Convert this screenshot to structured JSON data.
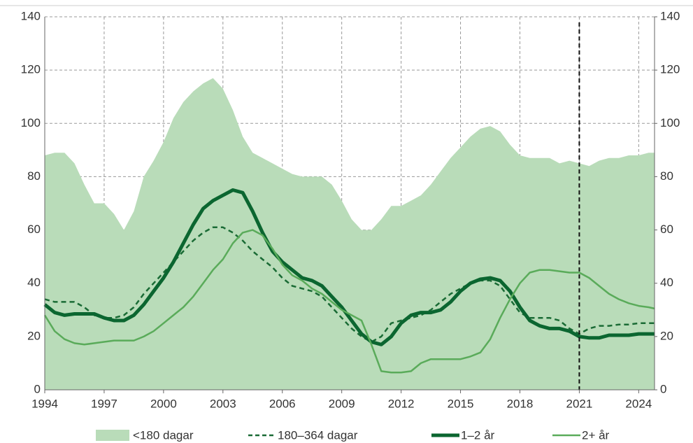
{
  "chart_data": {
    "type": "line",
    "x": [
      1994,
      1994.5,
      1995,
      1995.5,
      1996,
      1996.5,
      1997,
      1997.5,
      1998,
      1998.5,
      1999,
      1999.5,
      2000,
      2000.5,
      2001,
      2001.5,
      2002,
      2002.5,
      2003,
      2003.5,
      2004,
      2004.5,
      2005,
      2005.5,
      2006,
      2006.5,
      2007,
      2007.5,
      2008,
      2008.5,
      2009,
      2009.5,
      2010,
      2010.5,
      2011,
      2011.5,
      2012,
      2012.5,
      2013,
      2013.5,
      2014,
      2014.5,
      2015,
      2015.5,
      2016,
      2016.5,
      2017,
      2017.5,
      2018,
      2018.5,
      2019,
      2019.5,
      2020,
      2020.5,
      2021,
      2021.5,
      2022,
      2022.5,
      2023,
      2023.5,
      2024,
      2024.5,
      2024.8
    ],
    "series": [
      {
        "name": "<180 dagar",
        "kind": "area",
        "color": "#b9dcb9",
        "values": [
          88,
          89,
          89,
          85,
          77,
          70,
          70,
          66,
          60,
          67,
          80,
          86,
          93,
          102,
          108,
          112,
          115,
          117,
          113,
          105,
          95,
          89,
          87,
          85,
          83,
          81,
          80,
          80,
          80,
          77,
          71,
          64,
          60,
          60,
          64,
          69,
          69,
          71,
          73,
          77,
          82,
          87,
          91,
          95,
          98,
          99,
          97,
          92,
          88,
          87,
          87,
          87,
          85,
          86,
          85,
          84,
          86,
          87,
          87,
          88,
          88,
          89,
          89
        ]
      },
      {
        "name": "180–364 dagar",
        "kind": "dashed",
        "color": "#1a6b35",
        "values": [
          34,
          33,
          33,
          33,
          31,
          28,
          27,
          27,
          28,
          31,
          36,
          40,
          44,
          48,
          52,
          56,
          59,
          61,
          61,
          59,
          56,
          52,
          49,
          46,
          42,
          39,
          38,
          37,
          35,
          31,
          27,
          23,
          20,
          18,
          20,
          25,
          26,
          27,
          28,
          30,
          33,
          36,
          38,
          40,
          41,
          41,
          39,
          34,
          29,
          27,
          27,
          27,
          26,
          23,
          21,
          23,
          24,
          24,
          24.5,
          24.5,
          25,
          25,
          25
        ]
      },
      {
        "name": "1–2 år",
        "kind": "thick",
        "color": "#0b6630",
        "values": [
          32,
          29,
          28,
          28.5,
          28.5,
          28.5,
          27,
          26,
          26,
          28,
          32,
          37,
          42,
          48,
          55,
          62,
          68,
          71,
          73,
          75,
          74,
          67,
          59,
          52,
          48,
          45,
          42,
          41,
          39,
          35,
          31,
          26,
          21,
          18,
          17,
          20,
          25,
          28,
          29,
          29,
          30,
          33,
          37,
          40,
          41.5,
          42,
          41,
          37,
          31,
          26,
          24,
          23,
          23,
          22,
          20,
          19.5,
          19.5,
          20.5,
          20.5,
          20.5,
          21,
          21,
          21
        ]
      },
      {
        "name": "2+ år",
        "kind": "line",
        "color": "#5aab5a",
        "values": [
          28,
          22,
          19,
          17.5,
          17,
          17.5,
          18,
          18.5,
          18.5,
          18.5,
          20,
          22,
          25,
          28,
          31,
          35,
          40,
          45,
          49,
          55,
          59,
          60,
          58,
          53,
          47,
          43,
          41,
          38,
          36,
          33,
          30,
          28,
          26,
          17,
          7,
          6.5,
          6.5,
          7,
          10,
          11.5,
          11.5,
          11.5,
          11.5,
          12.5,
          14,
          19,
          27,
          34,
          40,
          44,
          45,
          45,
          44.5,
          44,
          44,
          42,
          39,
          36,
          34,
          32.5,
          31.5,
          31,
          30.5
        ]
      }
    ],
    "xlim": [
      1994,
      2024.8
    ],
    "xticks": [
      1994,
      1997,
      2000,
      2003,
      2006,
      2009,
      2012,
      2015,
      2018,
      2021,
      2024
    ],
    "ylim": [
      0,
      140
    ],
    "yticks": [
      0,
      20,
      40,
      60,
      80,
      100,
      120,
      140
    ],
    "y2lim": [
      0,
      140
    ],
    "y2ticks": [
      0,
      20,
      40,
      60,
      80,
      100,
      120,
      140
    ],
    "marker_x": 2021,
    "grid": true,
    "legend": "bottom"
  }
}
